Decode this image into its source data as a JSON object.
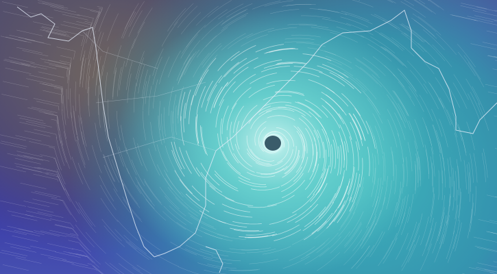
{
  "map": {
    "type": "wind-animation",
    "colors": {
      "land_calm": "#5a5560",
      "sea_moderate": "#3c34a0",
      "storm_strong": "#46c0be",
      "storm_core": "#d8fbf6",
      "eye": "#3a5c6a",
      "coastline": "#e6eefa",
      "streamline": "#ffffff"
    }
  }
}
